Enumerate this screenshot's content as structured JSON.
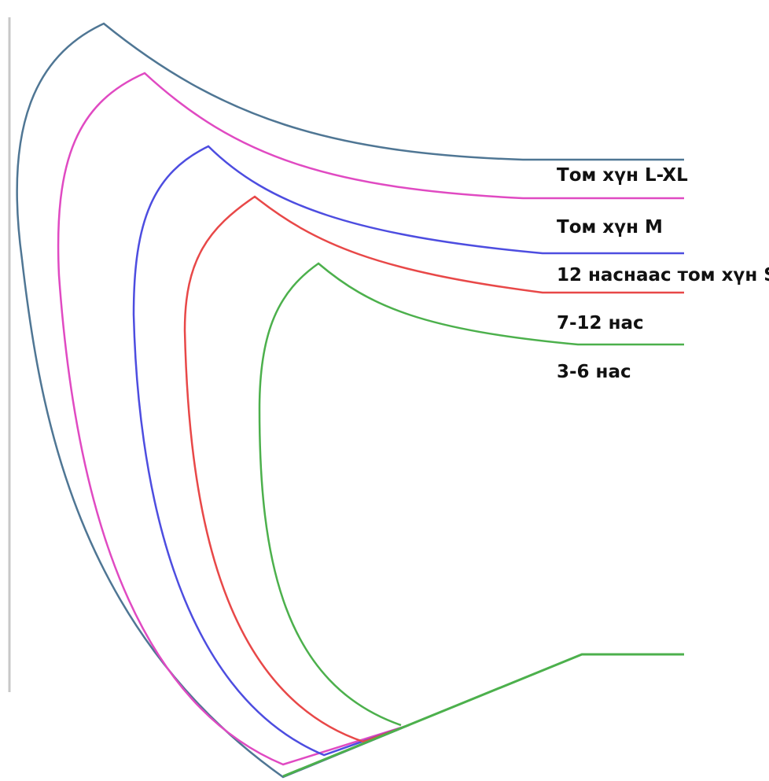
{
  "pattern_sizes": [
    {
      "label": "Том хүн L-XL",
      "color": "#4f7694"
    },
    {
      "label": "Том хүн M",
      "color": "#e04ac2"
    },
    {
      "label": "12 наснаас том хүн S",
      "color": "#4d4de0"
    },
    {
      "label": "7-12 нас",
      "color": "#e84848"
    },
    {
      "label": "3-6 нас",
      "color": "#4cb04c"
    }
  ],
  "frame_line_color": "#c8c8c8"
}
